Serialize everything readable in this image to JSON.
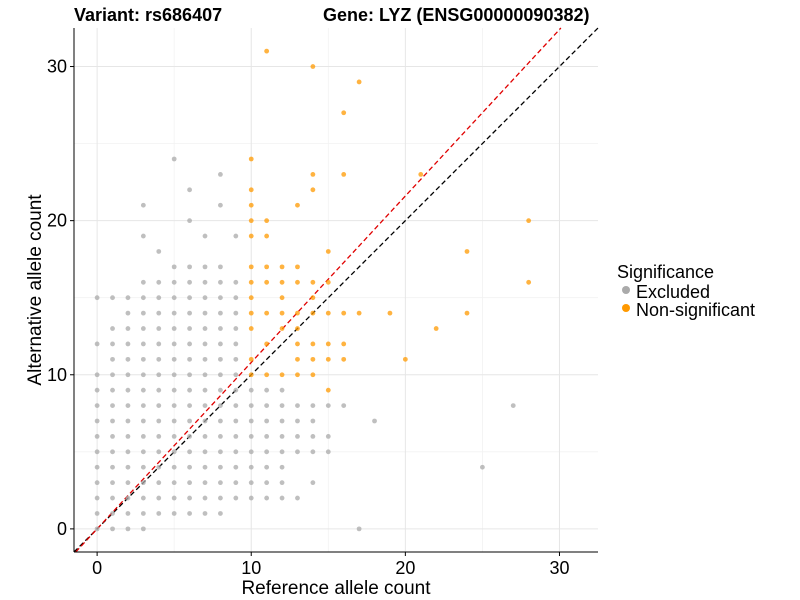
{
  "chart_data": {
    "type": "scatter",
    "title_left": "Variant: rs686407",
    "title_right": "Gene: LYZ (ENSG00000090382)",
    "xlabel": "Reference allele count",
    "ylabel": "Alternative allele count",
    "xlim": [
      -1.5,
      32.5
    ],
    "ylim": [
      -1.5,
      32.5
    ],
    "x_ticks": [
      0,
      10,
      20,
      30
    ],
    "y_ticks": [
      0,
      10,
      20,
      30
    ],
    "grid": true,
    "legend": {
      "title": "Significance",
      "position": "right",
      "entries": [
        {
          "label": "Excluded",
          "color": "#aaaaaa"
        },
        {
          "label": "Non-significant",
          "color": "#ff9900"
        }
      ]
    },
    "reference_lines": [
      {
        "name": "identity",
        "slope": 1,
        "intercept": 0,
        "color": "#000000",
        "style": "dashed"
      },
      {
        "name": "fitted",
        "slope": 1.08,
        "intercept": 0,
        "color": "#e00000",
        "style": "dashed"
      }
    ],
    "series": [
      {
        "name": "Excluded",
        "color": "#aaaaaa",
        "points": [
          [
            0,
            0
          ],
          [
            0,
            1
          ],
          [
            0,
            2
          ],
          [
            0,
            3
          ],
          [
            0,
            4
          ],
          [
            0,
            5
          ],
          [
            0,
            6
          ],
          [
            0,
            7
          ],
          [
            0,
            8
          ],
          [
            0,
            9
          ],
          [
            0,
            10
          ],
          [
            0,
            12
          ],
          [
            0,
            15
          ],
          [
            1,
            0
          ],
          [
            1,
            1
          ],
          [
            1,
            2
          ],
          [
            1,
            3
          ],
          [
            1,
            4
          ],
          [
            1,
            5
          ],
          [
            1,
            6
          ],
          [
            1,
            7
          ],
          [
            1,
            8
          ],
          [
            1,
            9
          ],
          [
            1,
            10
          ],
          [
            1,
            11
          ],
          [
            1,
            12
          ],
          [
            1,
            13
          ],
          [
            1,
            15
          ],
          [
            2,
            0
          ],
          [
            2,
            1
          ],
          [
            2,
            2
          ],
          [
            2,
            3
          ],
          [
            2,
            4
          ],
          [
            2,
            5
          ],
          [
            2,
            6
          ],
          [
            2,
            7
          ],
          [
            2,
            8
          ],
          [
            2,
            9
          ],
          [
            2,
            10
          ],
          [
            2,
            11
          ],
          [
            2,
            12
          ],
          [
            2,
            13
          ],
          [
            2,
            14
          ],
          [
            2,
            15
          ],
          [
            3,
            0
          ],
          [
            3,
            1
          ],
          [
            3,
            2
          ],
          [
            3,
            3
          ],
          [
            3,
            4
          ],
          [
            3,
            5
          ],
          [
            3,
            6
          ],
          [
            3,
            7
          ],
          [
            3,
            8
          ],
          [
            3,
            9
          ],
          [
            3,
            10
          ],
          [
            3,
            11
          ],
          [
            3,
            12
          ],
          [
            3,
            13
          ],
          [
            3,
            14
          ],
          [
            3,
            15
          ],
          [
            3,
            16
          ],
          [
            3,
            19
          ],
          [
            3,
            21
          ],
          [
            4,
            1
          ],
          [
            4,
            2
          ],
          [
            4,
            3
          ],
          [
            4,
            4
          ],
          [
            4,
            5
          ],
          [
            4,
            6
          ],
          [
            4,
            7
          ],
          [
            4,
            8
          ],
          [
            4,
            9
          ],
          [
            4,
            10
          ],
          [
            4,
            11
          ],
          [
            4,
            12
          ],
          [
            4,
            13
          ],
          [
            4,
            14
          ],
          [
            4,
            15
          ],
          [
            4,
            16
          ],
          [
            4,
            18
          ],
          [
            5,
            1
          ],
          [
            5,
            2
          ],
          [
            5,
            3
          ],
          [
            5,
            4
          ],
          [
            5,
            5
          ],
          [
            5,
            6
          ],
          [
            5,
            7
          ],
          [
            5,
            8
          ],
          [
            5,
            9
          ],
          [
            5,
            10
          ],
          [
            5,
            11
          ],
          [
            5,
            12
          ],
          [
            5,
            13
          ],
          [
            5,
            14
          ],
          [
            5,
            15
          ],
          [
            5,
            16
          ],
          [
            5,
            17
          ],
          [
            5,
            24
          ],
          [
            6,
            1
          ],
          [
            6,
            2
          ],
          [
            6,
            3
          ],
          [
            6,
            4
          ],
          [
            6,
            5
          ],
          [
            6,
            6
          ],
          [
            6,
            7
          ],
          [
            6,
            8
          ],
          [
            6,
            9
          ],
          [
            6,
            10
          ],
          [
            6,
            11
          ],
          [
            6,
            12
          ],
          [
            6,
            13
          ],
          [
            6,
            14
          ],
          [
            6,
            15
          ],
          [
            6,
            16
          ],
          [
            6,
            17
          ],
          [
            6,
            20
          ],
          [
            6,
            22
          ],
          [
            7,
            1
          ],
          [
            7,
            2
          ],
          [
            7,
            3
          ],
          [
            7,
            4
          ],
          [
            7,
            5
          ],
          [
            7,
            6
          ],
          [
            7,
            7
          ],
          [
            7,
            8
          ],
          [
            7,
            9
          ],
          [
            7,
            10
          ],
          [
            7,
            11
          ],
          [
            7,
            12
          ],
          [
            7,
            13
          ],
          [
            7,
            14
          ],
          [
            7,
            15
          ],
          [
            7,
            16
          ],
          [
            7,
            17
          ],
          [
            7,
            19
          ],
          [
            8,
            1
          ],
          [
            8,
            2
          ],
          [
            8,
            3
          ],
          [
            8,
            4
          ],
          [
            8,
            5
          ],
          [
            8,
            6
          ],
          [
            8,
            7
          ],
          [
            8,
            8
          ],
          [
            8,
            9
          ],
          [
            8,
            10
          ],
          [
            8,
            11
          ],
          [
            8,
            12
          ],
          [
            8,
            13
          ],
          [
            8,
            14
          ],
          [
            8,
            15
          ],
          [
            8,
            16
          ],
          [
            8,
            17
          ],
          [
            8,
            21
          ],
          [
            8,
            23
          ],
          [
            9,
            2
          ],
          [
            9,
            3
          ],
          [
            9,
            4
          ],
          [
            9,
            5
          ],
          [
            9,
            6
          ],
          [
            9,
            7
          ],
          [
            9,
            8
          ],
          [
            9,
            9
          ],
          [
            9,
            10
          ],
          [
            9,
            11
          ],
          [
            9,
            12
          ],
          [
            9,
            13
          ],
          [
            9,
            14
          ],
          [
            9,
            15
          ],
          [
            9,
            16
          ],
          [
            9,
            19
          ],
          [
            10,
            2
          ],
          [
            10,
            3
          ],
          [
            10,
            4
          ],
          [
            10,
            5
          ],
          [
            10,
            6
          ],
          [
            10,
            7
          ],
          [
            10,
            8
          ],
          [
            10,
            9
          ],
          [
            11,
            2
          ],
          [
            11,
            3
          ],
          [
            11,
            4
          ],
          [
            11,
            5
          ],
          [
            11,
            6
          ],
          [
            11,
            7
          ],
          [
            11,
            8
          ],
          [
            11,
            9
          ],
          [
            12,
            2
          ],
          [
            12,
            3
          ],
          [
            12,
            4
          ],
          [
            12,
            5
          ],
          [
            12,
            6
          ],
          [
            12,
            7
          ],
          [
            12,
            8
          ],
          [
            12,
            9
          ],
          [
            13,
            2
          ],
          [
            13,
            5
          ],
          [
            13,
            6
          ],
          [
            13,
            7
          ],
          [
            13,
            8
          ],
          [
            14,
            3
          ],
          [
            14,
            5
          ],
          [
            14,
            6
          ],
          [
            14,
            7
          ],
          [
            14,
            8
          ],
          [
            15,
            5
          ],
          [
            15,
            6
          ],
          [
            15,
            8
          ],
          [
            16,
            8
          ],
          [
            17,
            0
          ],
          [
            18,
            7
          ],
          [
            25,
            4
          ],
          [
            27,
            8
          ]
        ]
      },
      {
        "name": "Non-significant",
        "color": "#ff9900",
        "points": [
          [
            10,
            10
          ],
          [
            10,
            11
          ],
          [
            10,
            13
          ],
          [
            10,
            14
          ],
          [
            10,
            15
          ],
          [
            10,
            16
          ],
          [
            10,
            17
          ],
          [
            10,
            19
          ],
          [
            10,
            20
          ],
          [
            10,
            21
          ],
          [
            10,
            22
          ],
          [
            10,
            24
          ],
          [
            11,
            10
          ],
          [
            11,
            12
          ],
          [
            11,
            14
          ],
          [
            11,
            16
          ],
          [
            11,
            17
          ],
          [
            11,
            19
          ],
          [
            11,
            20
          ],
          [
            11,
            31
          ],
          [
            12,
            10
          ],
          [
            12,
            13
          ],
          [
            12,
            14
          ],
          [
            12,
            15
          ],
          [
            12,
            16
          ],
          [
            12,
            17
          ],
          [
            13,
            10
          ],
          [
            13,
            11
          ],
          [
            13,
            12
          ],
          [
            13,
            13
          ],
          [
            13,
            14
          ],
          [
            13,
            16
          ],
          [
            13,
            17
          ],
          [
            13,
            21
          ],
          [
            14,
            10
          ],
          [
            14,
            11
          ],
          [
            14,
            12
          ],
          [
            14,
            14
          ],
          [
            14,
            15
          ],
          [
            14,
            16
          ],
          [
            14,
            22
          ],
          [
            14,
            23
          ],
          [
            14,
            30
          ],
          [
            15,
            9
          ],
          [
            15,
            11
          ],
          [
            15,
            12
          ],
          [
            15,
            14
          ],
          [
            15,
            16
          ],
          [
            15,
            18
          ],
          [
            16,
            11
          ],
          [
            16,
            12
          ],
          [
            16,
            14
          ],
          [
            16,
            23
          ],
          [
            16,
            27
          ],
          [
            17,
            14
          ],
          [
            17,
            29
          ],
          [
            19,
            14
          ],
          [
            20,
            11
          ],
          [
            21,
            23
          ],
          [
            22,
            13
          ],
          [
            24,
            14
          ],
          [
            24,
            18
          ],
          [
            28,
            16
          ],
          [
            28,
            20
          ]
        ]
      }
    ]
  }
}
